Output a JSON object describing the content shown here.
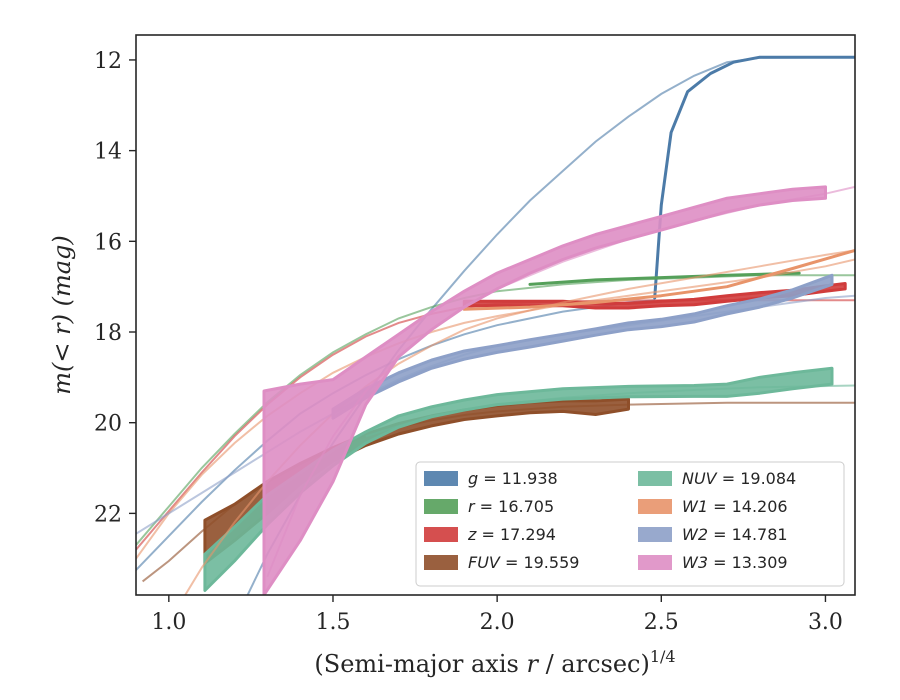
{
  "chart_data": {
    "type": "line",
    "xlabel_main": "(Semi-major axis ",
    "xlabel_var": "r",
    "xlabel_unit": " / arcsec)",
    "xlabel_exp": "1/4",
    "ylabel_main": "m(< r) (mag)",
    "xlim": [
      0.9,
      3.09
    ],
    "ylim": [
      23.8,
      11.45
    ],
    "y_inverted": true,
    "xticks": [
      1.0,
      1.5,
      2.0,
      2.5,
      3.0
    ],
    "xtick_labels": [
      "1.0",
      "1.5",
      "2.0",
      "2.5",
      "3.0"
    ],
    "yticks": [
      12,
      14,
      16,
      18,
      20,
      22
    ],
    "ytick_labels": [
      "12",
      "14",
      "16",
      "18",
      "20",
      "22"
    ],
    "grid": false,
    "legend_position": "bottom-right",
    "series": [
      {
        "name": "g = 11.938",
        "name_var": "g",
        "name_val": " = 11.938",
        "color": "#4c7ba8",
        "band": [
          [
            2.48,
            17.25,
            17.25
          ],
          [
            2.5,
            15.2,
            15.2
          ],
          [
            2.53,
            13.6,
            13.6
          ],
          [
            2.58,
            12.7,
            12.7
          ],
          [
            2.65,
            12.3,
            12.3
          ],
          [
            2.72,
            12.05,
            12.05
          ],
          [
            2.8,
            11.94,
            11.94
          ],
          [
            3.09,
            11.94,
            11.94
          ]
        ],
        "model": [
          [
            0.9,
            23.25
          ],
          [
            1.0,
            22.5
          ],
          [
            1.1,
            21.75
          ],
          [
            1.2,
            21.05
          ],
          [
            1.3,
            20.4
          ],
          [
            1.4,
            19.8
          ],
          [
            1.5,
            19.35
          ],
          [
            1.6,
            18.95
          ],
          [
            1.7,
            18.6
          ],
          [
            1.8,
            18.3
          ],
          [
            1.9,
            18.05
          ],
          [
            2.0,
            17.85
          ],
          [
            2.1,
            17.7
          ],
          [
            2.2,
            17.55
          ],
          [
            2.3,
            17.45
          ],
          [
            2.4,
            17.35
          ],
          [
            2.48,
            17.3
          ]
        ],
        "model2": [
          [
            1.24,
            23.8
          ],
          [
            1.3,
            22.9
          ],
          [
            1.4,
            21.6
          ],
          [
            1.5,
            20.45
          ],
          [
            1.6,
            19.4
          ],
          [
            1.7,
            18.4
          ],
          [
            1.8,
            17.5
          ],
          [
            1.9,
            16.65
          ],
          [
            2.0,
            15.85
          ],
          [
            2.1,
            15.1
          ],
          [
            2.2,
            14.45
          ],
          [
            2.3,
            13.8
          ],
          [
            2.4,
            13.25
          ],
          [
            2.5,
            12.75
          ],
          [
            2.6,
            12.35
          ],
          [
            2.7,
            12.05
          ],
          [
            2.8,
            11.95
          ],
          [
            3.09,
            11.94
          ]
        ]
      },
      {
        "name": "r = 16.705",
        "name_var": "r",
        "name_val": " = 16.705",
        "color": "#55a05a",
        "band": [
          [
            2.1,
            16.95,
            16.95
          ],
          [
            2.3,
            16.85,
            16.85
          ],
          [
            2.5,
            16.8,
            16.8
          ],
          [
            2.7,
            16.75,
            16.75
          ],
          [
            2.92,
            16.7,
            16.7
          ]
        ],
        "model": [
          [
            0.9,
            22.7
          ],
          [
            1.0,
            21.85
          ],
          [
            1.1,
            21.0
          ],
          [
            1.2,
            20.25
          ],
          [
            1.3,
            19.55
          ],
          [
            1.4,
            18.95
          ],
          [
            1.5,
            18.45
          ],
          [
            1.6,
            18.05
          ],
          [
            1.7,
            17.7
          ],
          [
            1.8,
            17.45
          ],
          [
            1.9,
            17.25
          ],
          [
            2.0,
            17.1
          ],
          [
            2.2,
            16.95
          ],
          [
            2.4,
            16.85
          ],
          [
            2.6,
            16.8
          ],
          [
            2.8,
            16.75
          ],
          [
            3.09,
            16.75
          ]
        ]
      },
      {
        "name": "z = 17.294",
        "name_var": "z",
        "name_val": " = 17.294",
        "color": "#d03c3c",
        "band": [
          [
            1.9,
            17.42,
            17.32
          ],
          [
            2.0,
            17.42,
            17.32
          ],
          [
            2.1,
            17.42,
            17.32
          ],
          [
            2.2,
            17.42,
            17.32
          ],
          [
            2.3,
            17.47,
            17.37
          ],
          [
            2.4,
            17.47,
            17.37
          ],
          [
            2.5,
            17.42,
            17.32
          ],
          [
            2.6,
            17.4,
            17.28
          ],
          [
            2.7,
            17.32,
            17.2
          ],
          [
            2.8,
            17.25,
            17.13
          ],
          [
            2.9,
            17.2,
            17.08
          ],
          [
            3.0,
            17.1,
            16.98
          ],
          [
            3.06,
            17.05,
            16.93
          ]
        ],
        "model": [
          [
            0.9,
            22.8
          ],
          [
            1.0,
            21.95
          ],
          [
            1.1,
            21.1
          ],
          [
            1.2,
            20.3
          ],
          [
            1.3,
            19.6
          ],
          [
            1.4,
            19.0
          ],
          [
            1.5,
            18.5
          ],
          [
            1.6,
            18.1
          ],
          [
            1.7,
            17.8
          ],
          [
            1.8,
            17.6
          ],
          [
            1.9,
            17.45
          ],
          [
            2.0,
            17.38
          ],
          [
            2.2,
            17.32
          ],
          [
            2.5,
            17.3
          ],
          [
            3.09,
            17.3
          ]
        ]
      },
      {
        "name": "FUV = 19.559",
        "name_var": "FUV",
        "name_val": " = 19.559",
        "color": "#8f4f2a",
        "band": [
          [
            1.11,
            23.1,
            22.15
          ],
          [
            1.2,
            22.6,
            21.8
          ],
          [
            1.3,
            22.0,
            21.3
          ],
          [
            1.4,
            21.35,
            20.9
          ],
          [
            1.5,
            20.85,
            20.55
          ],
          [
            1.6,
            20.5,
            20.25
          ],
          [
            1.7,
            20.25,
            20.02
          ],
          [
            1.8,
            20.07,
            19.85
          ],
          [
            1.9,
            19.93,
            19.72
          ],
          [
            2.0,
            19.85,
            19.62
          ],
          [
            2.1,
            19.78,
            19.55
          ],
          [
            2.2,
            19.75,
            19.52
          ],
          [
            2.3,
            19.82,
            19.52
          ],
          [
            2.4,
            19.7,
            19.48
          ]
        ],
        "model": [
          [
            0.92,
            23.5
          ],
          [
            1.0,
            23.05
          ],
          [
            1.1,
            22.4
          ],
          [
            1.2,
            21.8
          ],
          [
            1.3,
            21.3
          ],
          [
            1.4,
            20.9
          ],
          [
            1.5,
            20.55
          ],
          [
            1.6,
            20.3
          ],
          [
            1.7,
            20.1
          ],
          [
            1.8,
            19.95
          ],
          [
            1.9,
            19.83
          ],
          [
            2.0,
            19.75
          ],
          [
            2.2,
            19.65
          ],
          [
            2.4,
            19.6
          ],
          [
            2.7,
            19.56
          ],
          [
            3.09,
            19.56
          ]
        ]
      },
      {
        "name": "NUV = 19.084",
        "name_var": "NUV",
        "name_val": " = 19.084",
        "color": "#6db89a",
        "band": [
          [
            1.11,
            23.7,
            22.9
          ],
          [
            1.2,
            23.05,
            22.3
          ],
          [
            1.3,
            22.25,
            21.6
          ],
          [
            1.4,
            21.55,
            21.1
          ],
          [
            1.5,
            20.95,
            20.6
          ],
          [
            1.6,
            20.45,
            20.2
          ],
          [
            1.7,
            20.1,
            19.85
          ],
          [
            1.8,
            19.87,
            19.65
          ],
          [
            1.9,
            19.72,
            19.5
          ],
          [
            2.0,
            19.6,
            19.38
          ],
          [
            2.2,
            19.48,
            19.25
          ],
          [
            2.4,
            19.43,
            19.2
          ],
          [
            2.6,
            19.42,
            19.18
          ],
          [
            2.7,
            19.42,
            19.15
          ],
          [
            2.8,
            19.35,
            19.0
          ],
          [
            2.9,
            19.25,
            18.9
          ],
          [
            3.02,
            19.15,
            18.8
          ]
        ],
        "model": [
          [
            1.6,
            20.3
          ],
          [
            1.8,
            19.85
          ],
          [
            2.0,
            19.6
          ],
          [
            2.2,
            19.45
          ],
          [
            2.4,
            19.35
          ],
          [
            2.6,
            19.28
          ],
          [
            2.8,
            19.22
          ],
          [
            3.09,
            19.18
          ]
        ]
      },
      {
        "name": "W1 = 14.206",
        "name_var": "W1",
        "name_val": " = 14.206",
        "color": "#e8946a",
        "band": [
          [
            1.9,
            17.5,
            17.5
          ],
          [
            2.1,
            17.45,
            17.45
          ],
          [
            2.3,
            17.35,
            17.35
          ],
          [
            2.5,
            17.2,
            17.2
          ],
          [
            2.7,
            17.0,
            17.0
          ],
          [
            2.9,
            16.6,
            16.6
          ],
          [
            3.09,
            16.2,
            16.2
          ]
        ],
        "model": [
          [
            0.9,
            23.0
          ],
          [
            1.0,
            22.0
          ],
          [
            1.1,
            21.15
          ],
          [
            1.2,
            20.45
          ],
          [
            1.3,
            19.85
          ],
          [
            1.4,
            19.35
          ],
          [
            1.5,
            18.9
          ],
          [
            1.6,
            18.55
          ],
          [
            1.7,
            18.25
          ],
          [
            1.8,
            18.0
          ],
          [
            1.9,
            17.8
          ],
          [
            2.0,
            17.65
          ],
          [
            2.2,
            17.4
          ],
          [
            2.4,
            17.2
          ],
          [
            2.6,
            17.0
          ],
          [
            2.8,
            16.8
          ],
          [
            3.0,
            16.55
          ],
          [
            3.09,
            16.4
          ]
        ],
        "model2": [
          [
            1.05,
            23.8
          ],
          [
            1.1,
            23.2
          ],
          [
            1.2,
            22.2
          ],
          [
            1.3,
            21.3
          ],
          [
            1.4,
            20.5
          ],
          [
            1.5,
            19.8
          ],
          [
            1.6,
            19.2
          ],
          [
            1.7,
            18.7
          ],
          [
            1.8,
            18.3
          ],
          [
            1.9,
            17.95
          ],
          [
            2.0,
            17.7
          ],
          [
            2.2,
            17.35
          ],
          [
            2.4,
            17.05
          ],
          [
            2.6,
            16.8
          ],
          [
            2.8,
            16.55
          ],
          [
            3.0,
            16.3
          ],
          [
            3.09,
            16.2
          ]
        ]
      },
      {
        "name": "W2 = 14.781",
        "name_var": "W2",
        "name_val": " = 14.781",
        "color": "#8da0c8",
        "band": [
          [
            1.5,
            19.9,
            19.7
          ],
          [
            1.6,
            19.45,
            19.25
          ],
          [
            1.7,
            19.1,
            18.9
          ],
          [
            1.8,
            18.8,
            18.62
          ],
          [
            1.9,
            18.6,
            18.42
          ],
          [
            2.0,
            18.45,
            18.3
          ],
          [
            2.1,
            18.33,
            18.17
          ],
          [
            2.2,
            18.2,
            18.05
          ],
          [
            2.3,
            18.07,
            17.93
          ],
          [
            2.4,
            17.95,
            17.8
          ],
          [
            2.5,
            17.88,
            17.72
          ],
          [
            2.6,
            17.78,
            17.6
          ],
          [
            2.7,
            17.6,
            17.42
          ],
          [
            2.8,
            17.45,
            17.27
          ],
          [
            2.9,
            17.25,
            17.07
          ],
          [
            3.02,
            16.95,
            16.75
          ]
        ],
        "model": [
          [
            0.9,
            22.45
          ],
          [
            1.0,
            22.0
          ],
          [
            1.1,
            21.55
          ],
          [
            1.2,
            21.1
          ],
          [
            1.3,
            20.65
          ],
          [
            1.4,
            20.2
          ],
          [
            1.5,
            19.8
          ],
          [
            1.6,
            19.4
          ],
          [
            1.7,
            19.05
          ],
          [
            1.8,
            18.75
          ],
          [
            1.9,
            18.5
          ],
          [
            2.0,
            18.3
          ],
          [
            2.2,
            18.05
          ],
          [
            2.4,
            17.85
          ],
          [
            2.6,
            17.65
          ],
          [
            2.8,
            17.45
          ],
          [
            3.0,
            17.25
          ],
          [
            3.09,
            17.2
          ]
        ]
      },
      {
        "name": "W3 = 13.309",
        "name_var": "W3",
        "name_val": " = 13.309",
        "color": "#de8ec4",
        "band": [
          [
            1.29,
            23.8,
            19.3
          ],
          [
            1.4,
            22.6,
            19.15
          ],
          [
            1.5,
            21.3,
            19.05
          ],
          [
            1.6,
            19.6,
            18.55
          ],
          [
            1.7,
            18.55,
            18.05
          ],
          [
            1.8,
            17.95,
            17.55
          ],
          [
            1.9,
            17.45,
            17.1
          ],
          [
            2.0,
            17.05,
            16.7
          ],
          [
            2.1,
            16.7,
            16.4
          ],
          [
            2.2,
            16.4,
            16.1
          ],
          [
            2.3,
            16.15,
            15.85
          ],
          [
            2.4,
            15.95,
            15.65
          ],
          [
            2.5,
            15.75,
            15.45
          ],
          [
            2.6,
            15.55,
            15.25
          ],
          [
            2.7,
            15.35,
            15.05
          ],
          [
            2.8,
            15.2,
            14.95
          ],
          [
            2.9,
            15.1,
            14.85
          ],
          [
            3.0,
            15.05,
            14.8
          ]
        ],
        "model": [
          [
            1.3,
            23.4
          ],
          [
            1.35,
            22.5
          ],
          [
            1.4,
            21.6
          ],
          [
            1.5,
            20.3
          ],
          [
            1.6,
            19.3
          ],
          [
            1.7,
            18.55
          ],
          [
            1.8,
            17.95
          ],
          [
            1.9,
            17.45
          ],
          [
            2.0,
            17.05
          ],
          [
            2.2,
            16.45
          ],
          [
            2.4,
            15.95
          ],
          [
            2.6,
            15.55
          ],
          [
            2.8,
            15.2
          ],
          [
            3.0,
            14.95
          ],
          [
            3.09,
            14.8
          ]
        ]
      }
    ]
  }
}
